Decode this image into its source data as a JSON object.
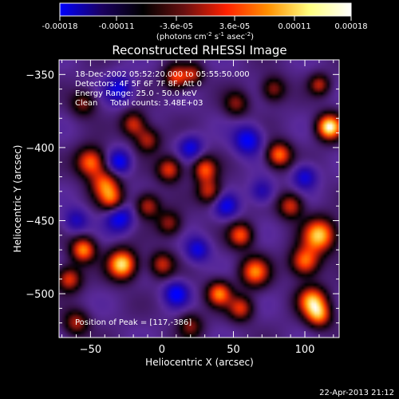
{
  "colorbar": {
    "tick_labels": [
      "-0.00018",
      "-0.00011",
      "-3.6e-05",
      "3.6e-05",
      "0.00011",
      "0.00018"
    ],
    "tick_values": [
      -0.00018,
      -0.00011,
      -3.6e-05,
      3.6e-05,
      0.00011,
      0.00018
    ],
    "range": [
      -0.00018,
      0.00018
    ],
    "unit_prefix": "(photons cm",
    "unit_sup1": "-2",
    "unit_mid": " s",
    "unit_sup2": "-1",
    "unit_mid2": " asec",
    "unit_sup3": "-2",
    "unit_suffix": ")",
    "colors": [
      "#0000ff",
      "#1a0060",
      "#000000",
      "#6a1010",
      "#ff2000",
      "#ff9000",
      "#ffff80",
      "#ffffff"
    ]
  },
  "chart_data": {
    "type": "heatmap",
    "title": "Reconstructed RHESSI Image",
    "xlabel": "Heliocentric X (arcsec)",
    "ylabel": "Heliocentric Y (arcsec)",
    "xlim": [
      -72,
      124
    ],
    "ylim": [
      -530,
      -340
    ],
    "x_ticks": [
      -50,
      0,
      50,
      100
    ],
    "y_ticks": [
      -350,
      -400,
      -450,
      -500
    ],
    "annotations": [
      "18-Dec-2002 05:52:20.000 to 05:55:50.000",
      "Detectors: 4F 5F 6F 7F 8F, Att 0",
      "Energy Range: 25.0 - 50.0 keV",
      "Clean     Total counts: 3.48E+03"
    ],
    "peak_text": "Position of Peak = [117,-386]",
    "peak_position": [
      117,
      -386
    ],
    "background_level": -6e-05,
    "sources": [
      {
        "x": 117,
        "y": -386,
        "amp": 0.00026,
        "s": 6
      },
      {
        "x": 110,
        "y": -357,
        "amp": 0.00012,
        "s": 5
      },
      {
        "x": 10,
        "y": -352,
        "amp": 0.00015,
        "s": 6
      },
      {
        "x": 22,
        "y": -350,
        "amp": 0.00011,
        "s": 5
      },
      {
        "x": 78,
        "y": -360,
        "amp": 0.00011,
        "s": 6
      },
      {
        "x": -55,
        "y": -370,
        "amp": 0.0001,
        "s": 6
      },
      {
        "x": 52,
        "y": -370,
        "amp": 0.0001,
        "s": 6
      },
      {
        "x": -20,
        "y": -384,
        "amp": 0.00014,
        "s": 6
      },
      {
        "x": -10,
        "y": -395,
        "amp": 0.00012,
        "s": 6
      },
      {
        "x": -50,
        "y": -410,
        "amp": 0.00018,
        "s": 7
      },
      {
        "x": -40,
        "y": -425,
        "amp": 0.00016,
        "s": 7
      },
      {
        "x": -35,
        "y": -436,
        "amp": 0.00014,
        "s": 6
      },
      {
        "x": 5,
        "y": -415,
        "amp": 0.00015,
        "s": 6
      },
      {
        "x": 30,
        "y": -415,
        "amp": 0.00016,
        "s": 6
      },
      {
        "x": 33,
        "y": -430,
        "amp": 0.00013,
        "s": 6
      },
      {
        "x": 82,
        "y": -405,
        "amp": 0.00018,
        "s": 6
      },
      {
        "x": 90,
        "y": -440,
        "amp": 0.00014,
        "s": 6
      },
      {
        "x": -10,
        "y": -440,
        "amp": 0.00013,
        "s": 6
      },
      {
        "x": 5,
        "y": -452,
        "amp": 0.00011,
        "s": 6
      },
      {
        "x": 55,
        "y": -460,
        "amp": 0.00016,
        "s": 6
      },
      {
        "x": 65,
        "y": -485,
        "amp": 0.00018,
        "s": 7
      },
      {
        "x": 110,
        "y": -460,
        "amp": 0.00022,
        "s": 8
      },
      {
        "x": 100,
        "y": -478,
        "amp": 0.00018,
        "s": 7
      },
      {
        "x": -55,
        "y": -470,
        "amp": 0.00019,
        "s": 6
      },
      {
        "x": -65,
        "y": -490,
        "amp": 0.00015,
        "s": 6
      },
      {
        "x": -28,
        "y": -480,
        "amp": 0.00024,
        "s": 7
      },
      {
        "x": 0,
        "y": -480,
        "amp": 0.00013,
        "s": 6
      },
      {
        "x": 40,
        "y": -500,
        "amp": 0.00018,
        "s": 6
      },
      {
        "x": 55,
        "y": -510,
        "amp": 0.00014,
        "s": 6
      },
      {
        "x": 105,
        "y": -505,
        "amp": 0.0002,
        "s": 7
      },
      {
        "x": 110,
        "y": -515,
        "amp": 0.00016,
        "s": 6
      },
      {
        "x": -60,
        "y": -520,
        "amp": 0.00012,
        "s": 6
      },
      {
        "x": 20,
        "y": -522,
        "amp": 0.0001,
        "s": 6
      },
      {
        "x": -30,
        "y": -360,
        "amp": -0.0001,
        "s": 7
      },
      {
        "x": 60,
        "y": -395,
        "amp": -0.00012,
        "s": 7
      },
      {
        "x": 20,
        "y": -400,
        "amp": -0.0001,
        "s": 6
      },
      {
        "x": -30,
        "y": -410,
        "amp": -0.00012,
        "s": 6
      },
      {
        "x": -30,
        "y": -448,
        "amp": -0.00012,
        "s": 7
      },
      {
        "x": 45,
        "y": -440,
        "amp": -0.0001,
        "s": 6
      },
      {
        "x": 70,
        "y": -430,
        "amp": -8e-05,
        "s": 6
      },
      {
        "x": 100,
        "y": -420,
        "amp": -0.0001,
        "s": 6
      },
      {
        "x": -60,
        "y": -450,
        "amp": -8e-05,
        "s": 6
      },
      {
        "x": 25,
        "y": -470,
        "amp": -0.0001,
        "s": 6
      },
      {
        "x": 10,
        "y": -500,
        "amp": -0.00012,
        "s": 6
      }
    ]
  },
  "footer_timestamp": "22-Apr-2013 21:12"
}
